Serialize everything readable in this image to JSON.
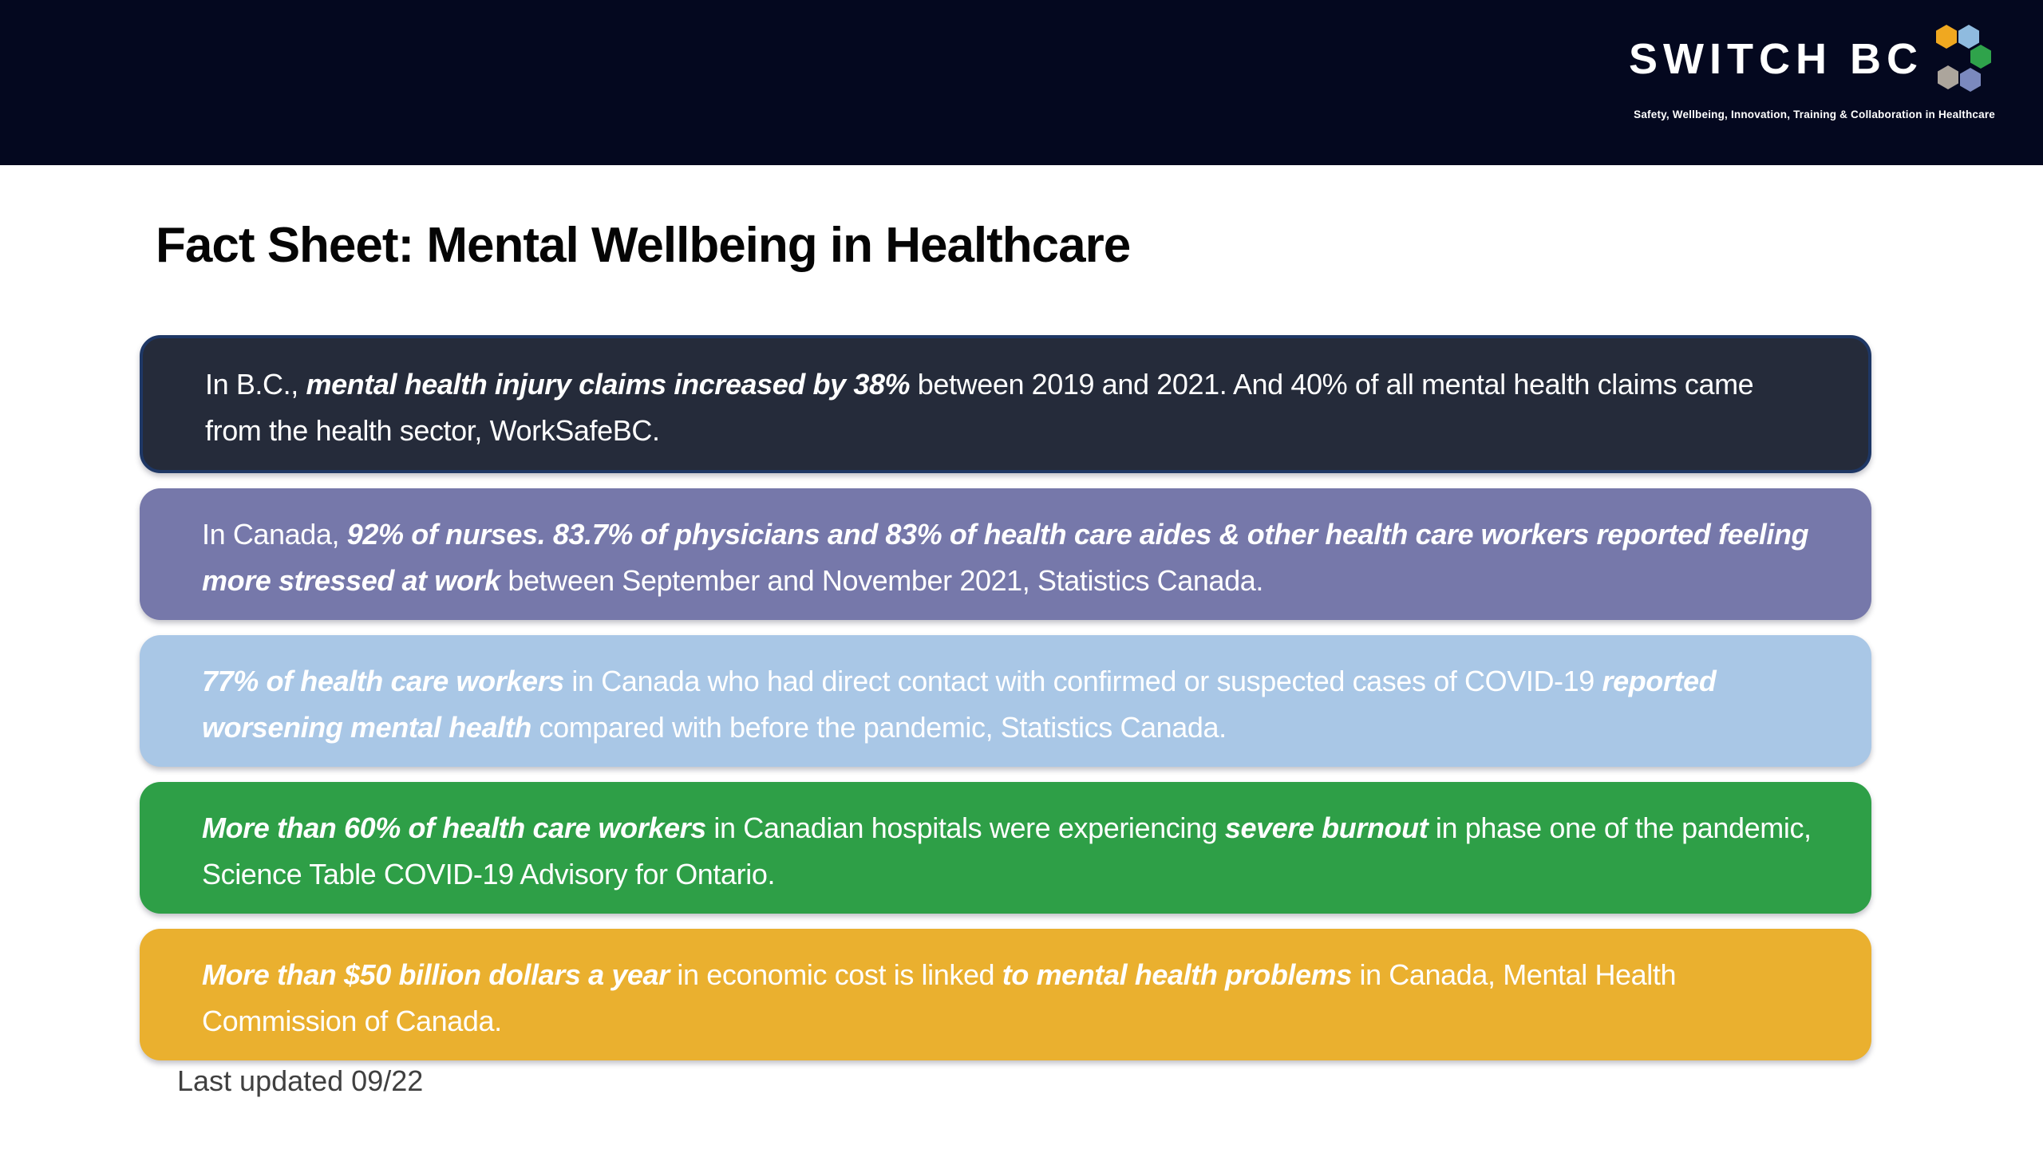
{
  "header": {
    "bg_color": "#04081F",
    "logo": {
      "text": "SWITCH BC",
      "tagline": "Safety, Wellbeing, Innovation, Training & Collaboration in Healthcare",
      "hexagons": [
        {
          "name": "yellow-hexagon",
          "color": "#F0A820"
        },
        {
          "name": "light-blue-hexagon",
          "color": "#8FBBDF"
        },
        {
          "name": "green-hexagon",
          "color": "#2FA34B"
        },
        {
          "name": "gray-hexagon",
          "color": "#ACA59C"
        },
        {
          "name": "slate-blue-hexagon",
          "color": "#7B89BE"
        }
      ]
    }
  },
  "title": "Fact Sheet: Mental Wellbeing in Healthcare",
  "facts": [
    {
      "id": "bc-injury-claims",
      "bg_color": "#252B3A",
      "border_color": "#1E3765",
      "segments": [
        {
          "text": "In B.C., ",
          "emphasis": false
        },
        {
          "text": "mental health injury claims increased by 38%",
          "emphasis": true
        },
        {
          "text": " between 2019 and 2021. And 40% of all mental health claims came from the health sector, WorkSafeBC.",
          "emphasis": false
        }
      ]
    },
    {
      "id": "canada-stress",
      "bg_color": "#7678AA",
      "border_color": null,
      "segments": [
        {
          "text": "In Canada, ",
          "emphasis": false
        },
        {
          "text": "92% of nurses. 83.7% of physicians and 83% of health care aides & other health care workers reported feeling more stressed at work",
          "emphasis": true
        },
        {
          "text": " between September and November 2021, Statistics Canada.",
          "emphasis": false
        }
      ]
    },
    {
      "id": "covid-contact",
      "bg_color": "#A9C7E6",
      "border_color": null,
      "segments": [
        {
          "text": "77% of health care workers",
          "emphasis": true
        },
        {
          "text": " in Canada who had direct contact with confirmed or suspected cases of COVID-19 ",
          "emphasis": false
        },
        {
          "text": "reported worsening mental health",
          "emphasis": true
        },
        {
          "text": " compared with before the pandemic, Statistics Canada.",
          "emphasis": false
        }
      ]
    },
    {
      "id": "severe-burnout",
      "bg_color": "#2E9F47",
      "border_color": null,
      "segments": [
        {
          "text": "More than 60% of health care workers",
          "emphasis": true
        },
        {
          "text": " in Canadian hospitals were experiencing ",
          "emphasis": false
        },
        {
          "text": "severe burnout",
          "emphasis": true
        },
        {
          "text": " in phase one of the pandemic, Science Table COVID-19 Advisory for Ontario.",
          "emphasis": false
        }
      ]
    },
    {
      "id": "economic-cost",
      "bg_color": "#EAB02F",
      "border_color": null,
      "segments": [
        {
          "text": "More than $50 billion dollars a year",
          "emphasis": true
        },
        {
          "text": " in economic cost is linked ",
          "emphasis": false
        },
        {
          "text": "to mental health problems",
          "emphasis": true
        },
        {
          "text": " in Canada, Mental Health Commission of Canada.",
          "emphasis": false
        }
      ]
    }
  ],
  "footer": {
    "last_updated": "Last updated 09/22"
  }
}
